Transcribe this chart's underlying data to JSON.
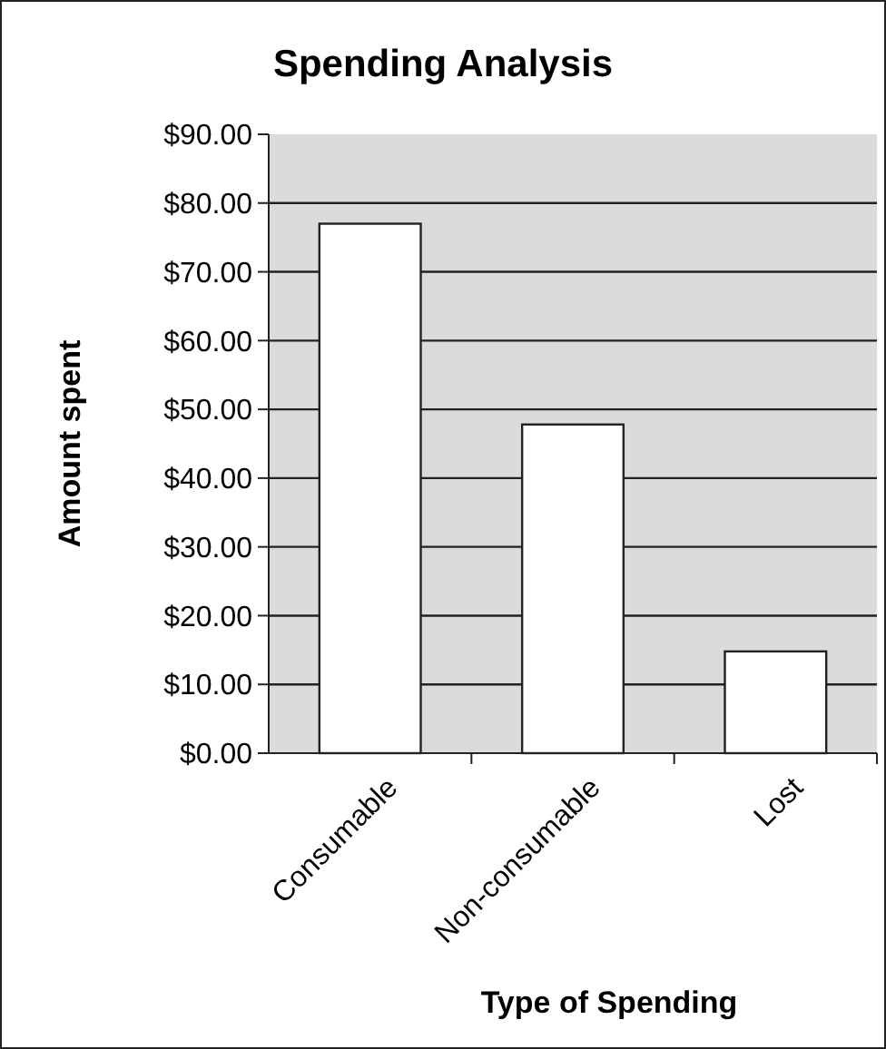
{
  "chart_data": {
    "type": "bar",
    "title": "Spending Analysis",
    "xlabel": "Type of Spending",
    "ylabel": "Amount spent",
    "categories": [
      "Consumable",
      "Non-consumable",
      "Lost"
    ],
    "values": [
      77.0,
      47.8,
      14.8
    ],
    "color": "#ffffff",
    "ylim": [
      0,
      90
    ],
    "yticks": [
      {
        "value": 0,
        "label": "$0.00"
      },
      {
        "value": 10,
        "label": "$10.00"
      },
      {
        "value": 20,
        "label": "$20.00"
      },
      {
        "value": 30,
        "label": "$30.00"
      },
      {
        "value": 40,
        "label": "$40.00"
      },
      {
        "value": 50,
        "label": "$50.00"
      },
      {
        "value": 60,
        "label": "$60.00"
      },
      {
        "value": 70,
        "label": "$70.00"
      },
      {
        "value": 80,
        "label": "$80.00"
      },
      {
        "value": 90,
        "label": "$90.00"
      }
    ],
    "grid": "y"
  }
}
